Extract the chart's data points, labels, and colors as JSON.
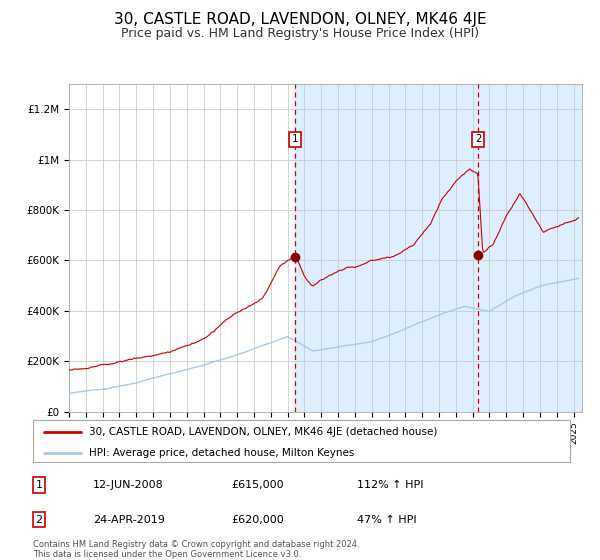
{
  "title": "30, CASTLE ROAD, LAVENDON, OLNEY, MK46 4JE",
  "subtitle": "Price paid vs. HM Land Registry's House Price Index (HPI)",
  "title_fontsize": 11,
  "subtitle_fontsize": 9,
  "xlim_start": 1995.0,
  "xlim_end": 2025.5,
  "ylim": [
    0,
    1300000
  ],
  "yticks": [
    0,
    200000,
    400000,
    600000,
    800000,
    1000000,
    1200000
  ],
  "ytick_labels": [
    "£0",
    "£200K",
    "£400K",
    "£600K",
    "£800K",
    "£1M",
    "£1.2M"
  ],
  "sale1_x": 2008.45,
  "sale1_y": 615000,
  "sale1_label": "1",
  "sale2_x": 2019.31,
  "sale2_y": 620000,
  "sale2_label": "2",
  "hpi_color": "#aac8e8",
  "price_color": "#cc0000",
  "dot_color": "#880000",
  "shade_color": "#ddeeff",
  "grid_color": "#cccccc",
  "bg_color": "#ffffff",
  "legend_line1": "30, CASTLE ROAD, LAVENDON, OLNEY, MK46 4JE (detached house)",
  "legend_line2": "HPI: Average price, detached house, Milton Keynes",
  "table_row1": [
    "1",
    "12-JUN-2008",
    "£615,000",
    "112% ↑ HPI"
  ],
  "table_row2": [
    "2",
    "24-APR-2019",
    "£620,000",
    "47% ↑ HPI"
  ],
  "footnote": "Contains HM Land Registry data © Crown copyright and database right 2024.\nThis data is licensed under the Open Government Licence v3.0."
}
